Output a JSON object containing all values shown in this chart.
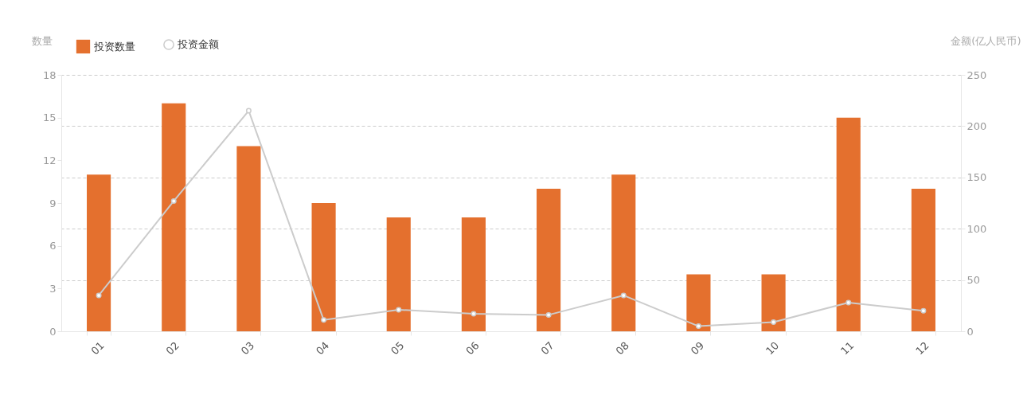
{
  "chart_data": {
    "type": "bar",
    "categories": [
      "01",
      "02",
      "03",
      "04",
      "05",
      "06",
      "07",
      "08",
      "09",
      "10",
      "11",
      "12"
    ],
    "ylabel": "数量",
    "y2label": "金额(亿人民币)",
    "series": [
      {
        "name": "投资数量",
        "color": "#e4702e",
        "values": [
          11,
          16,
          13,
          9,
          8,
          8,
          10,
          11,
          4,
          4,
          15,
          10
        ]
      },
      {
        "name": "投资金额",
        "type": "line",
        "axis": "y2",
        "color": "#cccccc",
        "values": [
          35,
          127,
          215,
          11,
          21,
          17,
          16,
          35,
          5,
          9,
          28,
          20
        ]
      }
    ],
    "ylim": [
      0,
      18
    ],
    "yticks": [
      0,
      3,
      6,
      9,
      12,
      15,
      18
    ],
    "y2lim": [
      0,
      250
    ],
    "y2ticks": [
      0,
      50,
      100,
      150,
      200,
      250
    ],
    "grid": true,
    "legend": "top left",
    "marker": "circle",
    "line_style": "solid"
  }
}
